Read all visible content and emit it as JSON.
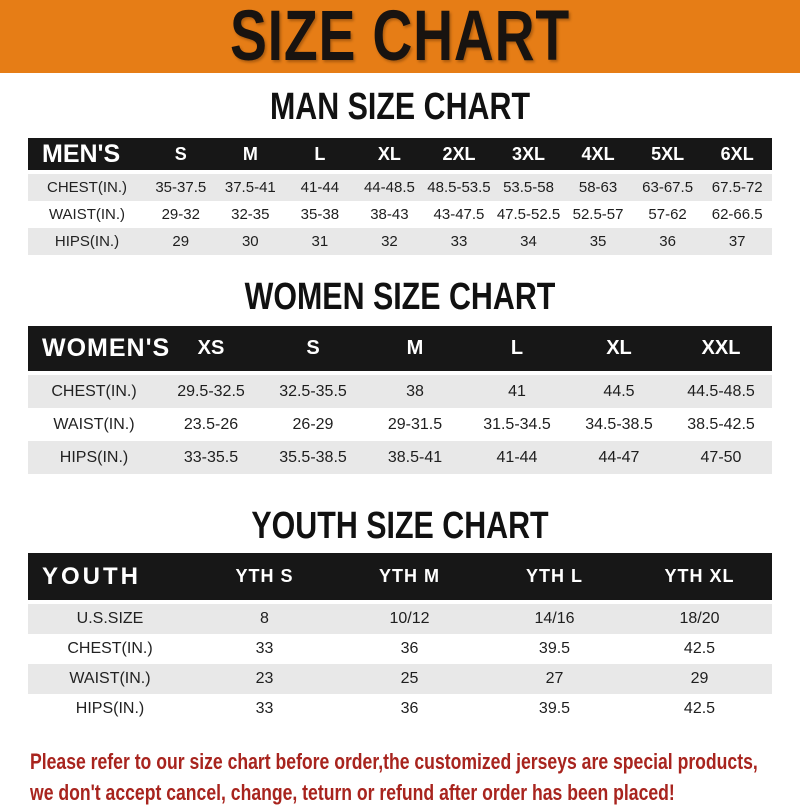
{
  "banner": {
    "title": "SIZE CHART",
    "bg_color": "#e67d16",
    "text_color": "#181310"
  },
  "sections": {
    "men": {
      "heading": "MAN SIZE CHART",
      "table": {
        "header": [
          "MEN'S",
          "S",
          "M",
          "L",
          "XL",
          "2XL",
          "3XL",
          "4XL",
          "5XL",
          "6XL"
        ],
        "rows": [
          [
            "CHEST(IN.)",
            "35-37.5",
            "37.5-41",
            "41-44",
            "44-48.5",
            "48.5-53.5",
            "53.5-58",
            "58-63",
            "63-67.5",
            "67.5-72"
          ],
          [
            "WAIST(IN.)",
            "29-32",
            "32-35",
            "35-38",
            "38-43",
            "43-47.5",
            "47.5-52.5",
            "52.5-57",
            "57-62",
            "62-66.5"
          ],
          [
            "HIPS(IN.)",
            "29",
            "30",
            "31",
            "32",
            "33",
            "34",
            "35",
            "36",
            "37"
          ]
        ]
      }
    },
    "women": {
      "heading": "WOMEN SIZE CHART",
      "table": {
        "header": [
          "WOMEN'S",
          "XS",
          "S",
          "M",
          "L",
          "XL",
          "XXL"
        ],
        "rows": [
          [
            "CHEST(IN.)",
            "29.5-32.5",
            "32.5-35.5",
            "38",
            "41",
            "44.5",
            "44.5-48.5"
          ],
          [
            "WAIST(IN.)",
            "23.5-26",
            "26-29",
            "29-31.5",
            "31.5-34.5",
            "34.5-38.5",
            "38.5-42.5"
          ],
          [
            "HIPS(IN.)",
            "33-35.5",
            "35.5-38.5",
            "38.5-41",
            "41-44",
            "44-47",
            "47-50"
          ]
        ]
      }
    },
    "youth": {
      "heading": "YOUTH SIZE CHART",
      "table": {
        "header": [
          "YOUTH",
          "YTH S",
          "YTH M",
          "YTH L",
          "YTH XL"
        ],
        "rows": [
          [
            "U.S.SIZE",
            "8",
            "10/12",
            "14/16",
            "18/20"
          ],
          [
            "CHEST(IN.)",
            "33",
            "36",
            "39.5",
            "42.5"
          ],
          [
            "WAIST(IN.)",
            "23",
            "25",
            "27",
            "29"
          ],
          [
            "HIPS(IN.)",
            "33",
            "36",
            "39.5",
            "42.5"
          ]
        ]
      }
    }
  },
  "disclaimer": {
    "lines": [
      "Please refer to our size chart before order,the customized jerseys are special products,",
      "we don't accept cancel, change, teturn or refund after order has been placed!"
    ],
    "color": "#a8241e"
  },
  "colors": {
    "accent_orange": "#e67d16",
    "header_bar_black": "#171717",
    "row_gray": "#e8e8e8",
    "disclaimer_red": "#a8241e"
  }
}
